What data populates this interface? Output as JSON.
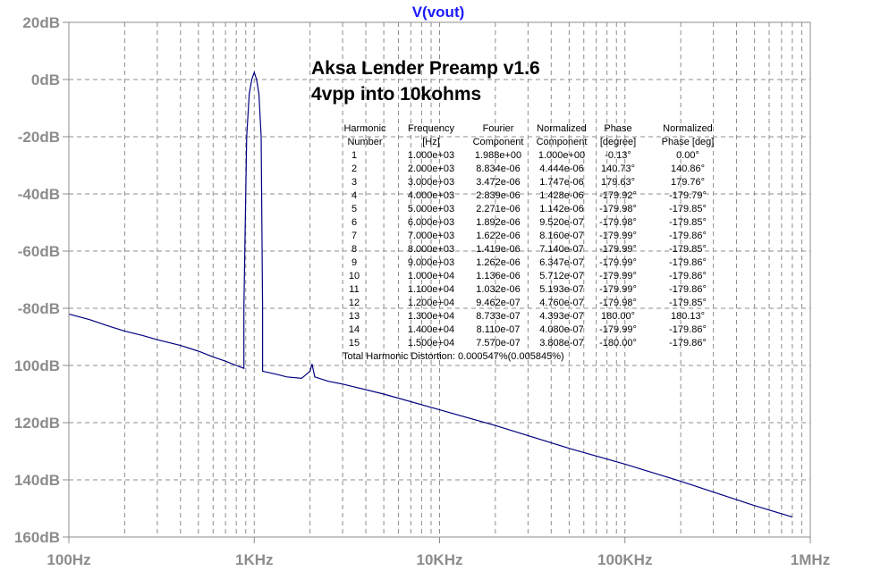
{
  "chart_data": {
    "type": "line",
    "title": "V(vout)",
    "xscale": "log",
    "xlim": [
      100,
      1000000
    ],
    "ylim": [
      -160,
      20
    ],
    "grid": true,
    "x_ticks": [
      "100Hz",
      "1KHz",
      "10KHz",
      "100KHz",
      "1MHz"
    ],
    "y_ticks": [
      "20dB",
      "0dB",
      "-20dB",
      "-40dB",
      "-60dB",
      "-80dB",
      "100dB",
      "120dB",
      "140dB",
      "160dB"
    ],
    "series": [
      {
        "name": "V(vout)",
        "color": "#000080",
        "points": [
          [
            100,
            -82
          ],
          [
            130,
            -84
          ],
          [
            160,
            -86
          ],
          [
            200,
            -88
          ],
          [
            250,
            -89.5
          ],
          [
            300,
            -91
          ],
          [
            400,
            -93
          ],
          [
            500,
            -95
          ],
          [
            600,
            -97
          ],
          [
            700,
            -98.5
          ],
          [
            800,
            -100
          ],
          [
            880,
            -101
          ],
          [
            880,
            -80
          ],
          [
            910,
            -20
          ],
          [
            940,
            -5
          ],
          [
            970,
            0
          ],
          [
            1000,
            2.5
          ],
          [
            1030,
            0
          ],
          [
            1060,
            -5
          ],
          [
            1090,
            -20
          ],
          [
            1110,
            -80
          ],
          [
            1110,
            -102
          ],
          [
            1300,
            -103
          ],
          [
            1500,
            -104
          ],
          [
            1800,
            -104.5
          ],
          [
            2000,
            -102
          ],
          [
            2050,
            -99.5
          ],
          [
            2120,
            -104
          ],
          [
            2500,
            -105.5
          ],
          [
            3000,
            -106.5
          ],
          [
            5000,
            -110
          ],
          [
            10000,
            -115.5
          ],
          [
            20000,
            -121
          ],
          [
            50000,
            -129
          ],
          [
            100000,
            -134.5
          ],
          [
            200000,
            -140.5
          ],
          [
            500000,
            -149
          ],
          [
            800000,
            -153
          ]
        ]
      }
    ],
    "annotations": {
      "title_line1": "Aksa Lender Preamp v1.6",
      "title_line2": "4vpp into 10kohms",
      "table_headers": [
        [
          "Harmonic",
          "Number"
        ],
        [
          "Frequency",
          "[Hz]"
        ],
        [
          "Fourier",
          "Component"
        ],
        [
          "Normalized",
          "Component"
        ],
        [
          "Phase",
          "[degree]"
        ],
        [
          "Normalized",
          "Phase [deg]"
        ]
      ],
      "table_rows": [
        [
          "1",
          "1.000e+03",
          "1.988e+00",
          "1.000e+00",
          "-0.13°",
          "0.00°"
        ],
        [
          "2",
          "2.000e+03",
          "8.834e-06",
          "4.444e-06",
          "140.73°",
          "140.86°"
        ],
        [
          "3",
          "3.000e+03",
          "3.472e-06",
          "1.747e-06",
          "179.63°",
          "179.76°"
        ],
        [
          "4",
          "4.000e+03",
          "2.839e-06",
          "1.428e-06",
          "-179.92°",
          "-179.79°"
        ],
        [
          "5",
          "5.000e+03",
          "2.271e-06",
          "1.142e-06",
          "-179.98°",
          "-179.85°"
        ],
        [
          "6",
          "6.000e+03",
          "1.892e-06",
          "9.520e-07",
          "-179.98°",
          "-179.85°"
        ],
        [
          "7",
          "7.000e+03",
          "1.622e-06",
          "8.160e-07",
          "-179.99°",
          "-179.86°"
        ],
        [
          "8",
          "8.000e+03",
          "1.419e-06",
          "7.140e-07",
          "-179.99°",
          "-179.85°"
        ],
        [
          "9",
          "9.000e+03",
          "1.262e-06",
          "6.347e-07",
          "-179.99°",
          "-179.86°"
        ],
        [
          "10",
          "1.000e+04",
          "1.136e-06",
          "5.712e-07",
          "-179.99°",
          "-179.86°"
        ],
        [
          "11",
          "1.100e+04",
          "1.032e-06",
          "5.193e-07",
          "-179.99°",
          "-179.86°"
        ],
        [
          "12",
          "1.200e+04",
          "9.462e-07",
          "4.760e-07",
          "-179.98°",
          "-179.85°"
        ],
        [
          "13",
          "1.300e+04",
          "8.733e-07",
          "4.393e-07",
          "180.00°",
          "180.13°"
        ],
        [
          "14",
          "1.400e+04",
          "8.110e-07",
          "4.080e-07",
          "-179.99°",
          "-179.86°"
        ],
        [
          "15",
          "1.500e+04",
          "7.570e-07",
          "3.808e-07",
          "-180.00°",
          "-179.86°"
        ]
      ],
      "thd": "Total Harmonic Distortion: 0.000547%(0.005845%)"
    }
  }
}
